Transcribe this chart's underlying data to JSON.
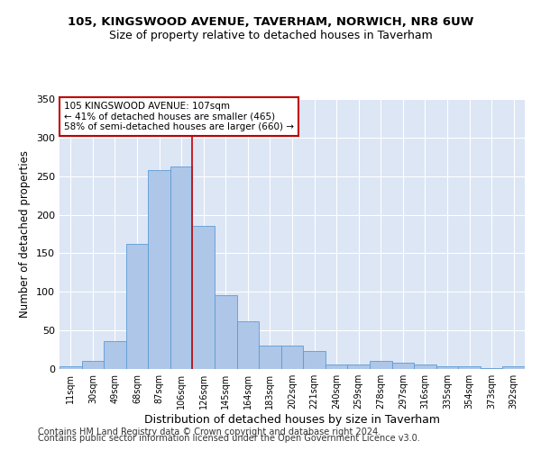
{
  "title1": "105, KINGSWOOD AVENUE, TAVERHAM, NORWICH, NR8 6UW",
  "title2": "Size of property relative to detached houses in Taverham",
  "xlabel": "Distribution of detached houses by size in Taverham",
  "ylabel": "Number of detached properties",
  "categories": [
    "11sqm",
    "30sqm",
    "49sqm",
    "68sqm",
    "87sqm",
    "106sqm",
    "126sqm",
    "145sqm",
    "164sqm",
    "183sqm",
    "202sqm",
    "221sqm",
    "240sqm",
    "259sqm",
    "278sqm",
    "297sqm",
    "316sqm",
    "335sqm",
    "354sqm",
    "373sqm",
    "392sqm"
  ],
  "values": [
    3,
    10,
    36,
    162,
    258,
    263,
    185,
    96,
    62,
    30,
    30,
    23,
    6,
    6,
    10,
    8,
    6,
    4,
    3,
    1,
    3
  ],
  "bar_color": "#aec6e8",
  "bar_edge_color": "#5b9bd5",
  "vline_x": 5.5,
  "vline_color": "#c00000",
  "annotation_text": "105 KINGSWOOD AVENUE: 107sqm\n← 41% of detached houses are smaller (465)\n58% of semi-detached houses are larger (660) →",
  "annotation_box_color": "white",
  "annotation_box_edge": "#c00000",
  "footer1": "Contains HM Land Registry data © Crown copyright and database right 2024.",
  "footer2": "Contains public sector information licensed under the Open Government Licence v3.0.",
  "background_color": "#dce6f5",
  "ylim": [
    0,
    350
  ],
  "yticks": [
    0,
    50,
    100,
    150,
    200,
    250,
    300,
    350
  ],
  "title1_fontsize": 9.5,
  "title2_fontsize": 9,
  "xlabel_fontsize": 9,
  "ylabel_fontsize": 8.5,
  "tick_fontsize": 8,
  "xtick_fontsize": 7,
  "footer_fontsize": 7,
  "annotation_fontsize": 7.5
}
